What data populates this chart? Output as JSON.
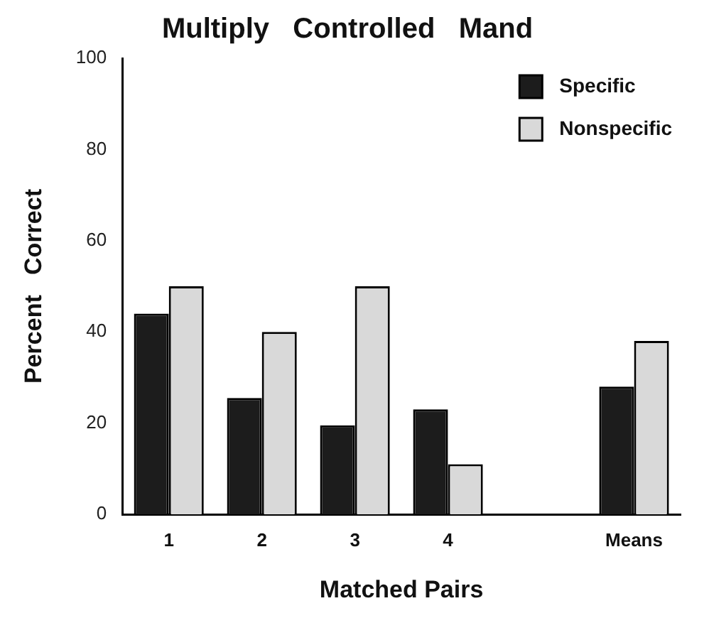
{
  "chart_data": {
    "type": "bar",
    "title": "Multiply   Controlled   Mand",
    "xlabel": "Matched Pairs",
    "ylabel": "Percent   Correct",
    "categories": [
      "1",
      "2",
      "3",
      "4",
      null,
      "Means"
    ],
    "series": [
      {
        "name": "Specific",
        "color": "#1c1c1c",
        "values": [
          44,
          25.5,
          19.5,
          23,
          null,
          28
        ]
      },
      {
        "name": "Nonspecific",
        "color": "#d9d9d9",
        "values": [
          50,
          40,
          50,
          11,
          null,
          38
        ]
      }
    ],
    "ylim": [
      0,
      100
    ],
    "yticks": [
      0,
      20,
      40,
      60,
      80,
      100
    ],
    "grid": false,
    "legend": "top right"
  }
}
